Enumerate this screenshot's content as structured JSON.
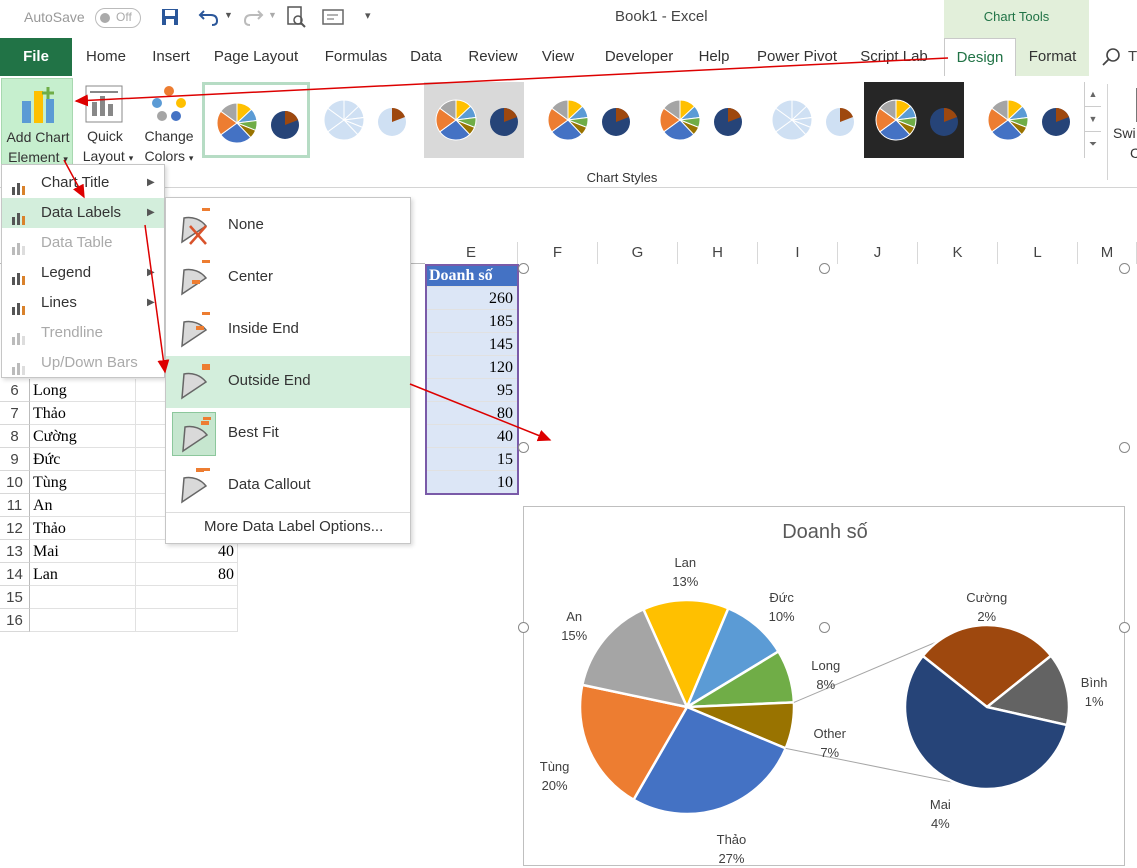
{
  "titlebar": {
    "autosave_label": "AutoSave",
    "autosave_state": "Off",
    "window_title": "Book1  -  Excel",
    "context_group": "Chart Tools"
  },
  "tabs": [
    "File",
    "Home",
    "Insert",
    "Page Layout",
    "Formulas",
    "Data",
    "Review",
    "View",
    "Developer",
    "Help",
    "Power Pivot",
    "Script Lab",
    "Design",
    "Format"
  ],
  "active_tab": "Design",
  "ribbon": {
    "add_chart_element": [
      "Add Chart",
      "Element"
    ],
    "quick_layout": [
      "Quick",
      "Layout"
    ],
    "change_colors": [
      "Change",
      "Colors"
    ],
    "chart_styles_label": "Chart Styles",
    "switch_partial": [
      "Swi",
      "C"
    ]
  },
  "add_chart_menu": [
    {
      "label": "Chart Title",
      "enabled": true,
      "icon": "chart-title-icon"
    },
    {
      "label": "Data Labels",
      "enabled": true,
      "icon": "data-labels-icon"
    },
    {
      "label": "Data Table",
      "enabled": false,
      "icon": "data-table-icon"
    },
    {
      "label": "Legend",
      "enabled": true,
      "icon": "legend-icon"
    },
    {
      "label": "Lines",
      "enabled": true,
      "icon": "lines-icon"
    },
    {
      "label": "Trendline",
      "enabled": false,
      "icon": "trendline-icon"
    },
    {
      "label": "Up/Down Bars",
      "enabled": false,
      "icon": "updown-bars-icon"
    }
  ],
  "data_labels_menu": [
    "None",
    "Center",
    "Inside End",
    "Outside End",
    "Best Fit",
    "Data Callout"
  ],
  "data_labels_more": "More Data Label Options...",
  "sheet": {
    "columns": [
      "E",
      "F",
      "G",
      "H",
      "I",
      "J",
      "K",
      "L",
      "M"
    ],
    "e_header": "Doanh số",
    "e_values": [
      "260",
      "185",
      "145",
      "120",
      "95",
      "80",
      "40",
      "15",
      "10"
    ],
    "rows": [
      {
        "num": "6",
        "name": "Long"
      },
      {
        "num": "7",
        "name": "Thảo"
      },
      {
        "num": "8",
        "name": "Cường"
      },
      {
        "num": "9",
        "name": "Đức"
      },
      {
        "num": "10",
        "name": "Tùng"
      },
      {
        "num": "11",
        "name": "An"
      },
      {
        "num": "12",
        "name": "Thảo"
      },
      {
        "num": "13",
        "name": "Mai",
        "value": "40"
      },
      {
        "num": "14",
        "name": "Lan",
        "value": "80"
      },
      {
        "num": "15"
      },
      {
        "num": "16"
      }
    ]
  },
  "chart_data": {
    "type": "pie",
    "title": "Doanh số",
    "main_pie": [
      {
        "label": "Lan",
        "pct": 13,
        "color": "#FFC000"
      },
      {
        "label": "Đức",
        "pct": 10,
        "color": "#5B9BD5"
      },
      {
        "label": "Long",
        "pct": 8,
        "color": "#70AD47"
      },
      {
        "label": "Other",
        "pct": 7,
        "color": "#997300"
      },
      {
        "label": "Thảo",
        "pct": 27,
        "color": "#4472C4"
      },
      {
        "label": "Tùng",
        "pct": 20,
        "color": "#ED7D31"
      },
      {
        "label": "An",
        "pct": 15,
        "color": "#A5A5A5"
      }
    ],
    "secondary_pie": [
      {
        "label": "Cường",
        "pct": 2,
        "color": "#9E480E"
      },
      {
        "label": "Bình",
        "pct": 1,
        "color": "#636363"
      },
      {
        "label": "Mai",
        "pct": 4,
        "color": "#264478"
      }
    ]
  }
}
